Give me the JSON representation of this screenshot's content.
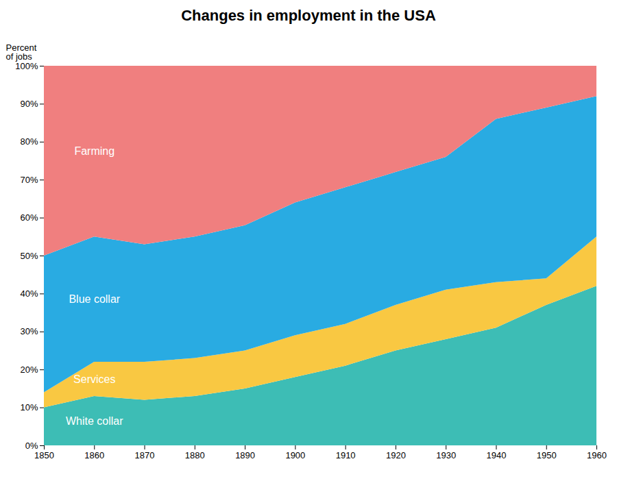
{
  "chart_data": {
    "type": "area",
    "stacked": true,
    "title": "Changes in employment in the USA",
    "ylabel": "Percent\nof jobs",
    "x": [
      1850,
      1860,
      1870,
      1880,
      1890,
      1900,
      1910,
      1920,
      1930,
      1940,
      1950,
      1960
    ],
    "xlim": [
      1850,
      1960
    ],
    "xticks": [
      1850,
      1860,
      1870,
      1880,
      1890,
      1900,
      1910,
      1920,
      1930,
      1940,
      1950,
      1960
    ],
    "ylim": [
      0,
      100
    ],
    "yticks": [
      {
        "value": 0,
        "label": "0%"
      },
      {
        "value": 10,
        "label": "10%"
      },
      {
        "value": 20,
        "label": "20%"
      },
      {
        "value": 30,
        "label": "30%"
      },
      {
        "value": 40,
        "label": "40%"
      },
      {
        "value": 50,
        "label": "50%"
      },
      {
        "value": 60,
        "label": "60%"
      },
      {
        "value": 70,
        "label": "70%"
      },
      {
        "value": 80,
        "label": "80%"
      },
      {
        "value": 90,
        "label": "90%"
      },
      {
        "value": 100,
        "label": "100%"
      }
    ],
    "grid": false,
    "series": [
      {
        "name": "White collar",
        "color": "#3dbdb5",
        "values": [
          10,
          13,
          12,
          13,
          15,
          18,
          21,
          25,
          28,
          31,
          37,
          42
        ]
      },
      {
        "name": "Services",
        "color": "#f9c842",
        "values": [
          4,
          9,
          10,
          10,
          10,
          11,
          11,
          12,
          13,
          12,
          7,
          13
        ]
      },
      {
        "name": "Blue collar",
        "color": "#29abe2",
        "values": [
          36,
          33,
          31,
          32,
          33,
          35,
          36,
          35,
          35,
          43,
          45,
          37
        ]
      },
      {
        "name": "Farming",
        "color": "#f07f7f",
        "values": [
          50,
          45,
          47,
          45,
          42,
          36,
          32,
          28,
          24,
          14,
          11,
          8
        ]
      }
    ]
  }
}
